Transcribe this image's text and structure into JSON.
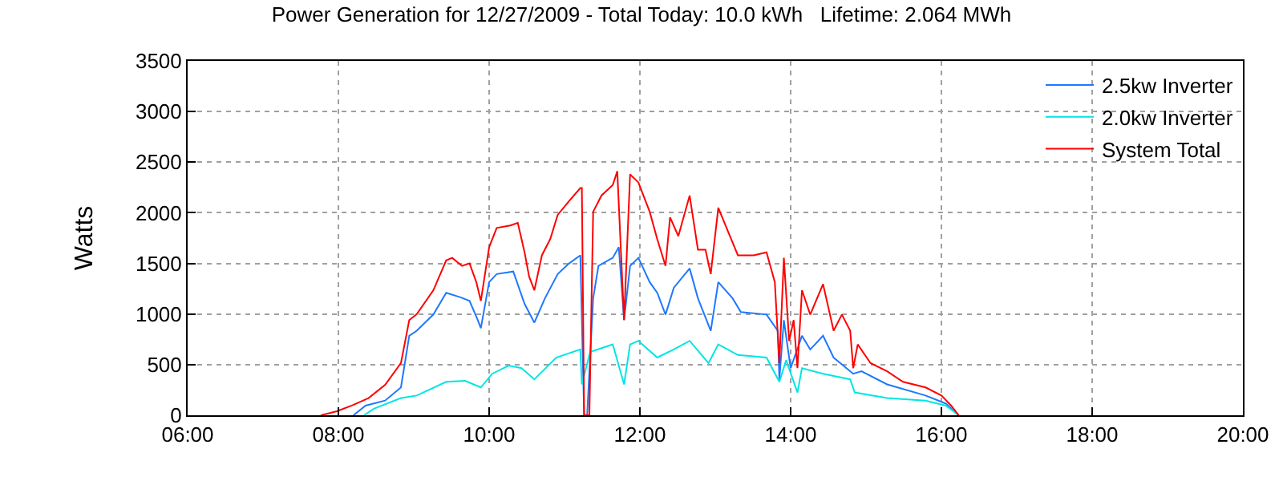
{
  "chart_data": {
    "type": "line",
    "title": "Power Generation for 12/27/2009 - Total Today: 10.0 kWh   Lifetime: 2.064 MWh",
    "ylabel": "Watts",
    "xlim": [
      6,
      20
    ],
    "ylim": [
      0,
      3500
    ],
    "xticks": [
      {
        "value": 6,
        "label": "06:00"
      },
      {
        "value": 8,
        "label": "08:00"
      },
      {
        "value": 10,
        "label": "10:00"
      },
      {
        "value": 12,
        "label": "12:00"
      },
      {
        "value": 14,
        "label": "14:00"
      },
      {
        "value": 16,
        "label": "16:00"
      },
      {
        "value": 18,
        "label": "18:00"
      },
      {
        "value": 20,
        "label": "20:00"
      }
    ],
    "yticks": [
      0,
      500,
      1000,
      1500,
      2000,
      2500,
      3000,
      3500
    ],
    "grid": true,
    "legend": "top right",
    "marker": "none",
    "line_style": "solid",
    "series": [
      {
        "name": "2.5kw Inverter",
        "color": "#1e78ff",
        "x": [
          8.2,
          8.36,
          8.62,
          8.83,
          8.94,
          9.04,
          9.26,
          9.43,
          9.62,
          9.74,
          9.85,
          9.89,
          10.0,
          10.1,
          10.32,
          10.47,
          10.6,
          10.74,
          10.91,
          11.06,
          11.21,
          11.26,
          11.3,
          11.38,
          11.45,
          11.64,
          11.72,
          11.79,
          11.87,
          11.98,
          12.13,
          12.23,
          12.34,
          12.45,
          12.66,
          12.77,
          12.94,
          13.04,
          13.23,
          13.34,
          13.68,
          13.83,
          13.85,
          13.91,
          14.0,
          14.15,
          14.26,
          14.43,
          14.57,
          14.83,
          14.94,
          15.28,
          15.79,
          16.06,
          16.23
        ],
        "values": [
          0,
          95,
          145,
          275,
          785,
          835,
          995,
          1210,
          1165,
          1130,
          940,
          860,
          1315,
          1395,
          1420,
          1100,
          915,
          1155,
          1395,
          1500,
          1580,
          0,
          0,
          1155,
          1475,
          1555,
          1660,
          940,
          1475,
          1555,
          1315,
          1210,
          995,
          1260,
          1450,
          1155,
          835,
          1315,
          1155,
          1020,
          995,
          835,
          355,
          940,
          465,
          785,
          650,
          785,
          570,
          410,
          435,
          305,
          195,
          115,
          0
        ]
      },
      {
        "name": "2.0kw Inverter",
        "color": "#00e5e5",
        "x": [
          8.34,
          8.47,
          8.83,
          9.04,
          9.43,
          9.68,
          9.89,
          10.04,
          10.26,
          10.43,
          10.6,
          10.89,
          11.21,
          11.23,
          11.34,
          11.64,
          11.79,
          11.87,
          11.98,
          12.23,
          12.45,
          12.66,
          12.91,
          13.04,
          13.3,
          13.68,
          13.85,
          13.94,
          14.09,
          14.15,
          14.43,
          14.79,
          14.85,
          15.28,
          15.79,
          16.06,
          16.23
        ],
        "values": [
          0,
          65,
          170,
          195,
          330,
          340,
          275,
          410,
          490,
          465,
          355,
          570,
          650,
          305,
          625,
          700,
          305,
          700,
          735,
          570,
          650,
          735,
          515,
          700,
          595,
          570,
          330,
          545,
          225,
          465,
          410,
          355,
          225,
          170,
          145,
          95,
          0
        ]
      },
      {
        "name": "System Total",
        "color": "#ff0000",
        "x": [
          7.77,
          7.98,
          8.19,
          8.4,
          8.62,
          8.83,
          8.94,
          9.04,
          9.26,
          9.43,
          9.51,
          9.64,
          9.74,
          9.83,
          9.89,
          10.0,
          10.1,
          10.28,
          10.38,
          10.47,
          10.53,
          10.6,
          10.7,
          10.81,
          10.91,
          11.06,
          11.21,
          11.23,
          11.26,
          11.33,
          11.38,
          11.49,
          11.64,
          11.7,
          11.79,
          11.87,
          11.98,
          12.13,
          12.23,
          12.34,
          12.4,
          12.51,
          12.66,
          12.77,
          12.87,
          12.94,
          13.04,
          13.15,
          13.3,
          13.51,
          13.68,
          13.79,
          13.85,
          13.91,
          13.98,
          14.04,
          14.09,
          14.15,
          14.26,
          14.43,
          14.57,
          14.68,
          14.79,
          14.83,
          14.89,
          15.06,
          15.28,
          15.49,
          15.79,
          16.0,
          16.13,
          16.23
        ],
        "values": [
          0,
          40,
          100,
          170,
          300,
          515,
          940,
          1000,
          1235,
          1530,
          1555,
          1475,
          1500,
          1315,
          1130,
          1660,
          1850,
          1875,
          1900,
          1610,
          1370,
          1235,
          1580,
          1740,
          1980,
          2115,
          2245,
          2245,
          0,
          0,
          2010,
          2170,
          2275,
          2410,
          940,
          2380,
          2300,
          2010,
          1740,
          1475,
          1955,
          1770,
          2170,
          1635,
          1635,
          1395,
          2050,
          1850,
          1580,
          1580,
          1610,
          1315,
          515,
          1555,
          735,
          940,
          465,
          1235,
          995,
          1295,
          835,
          995,
          835,
          465,
          700,
          515,
          435,
          330,
          275,
          195,
          95,
          0
        ]
      }
    ]
  }
}
